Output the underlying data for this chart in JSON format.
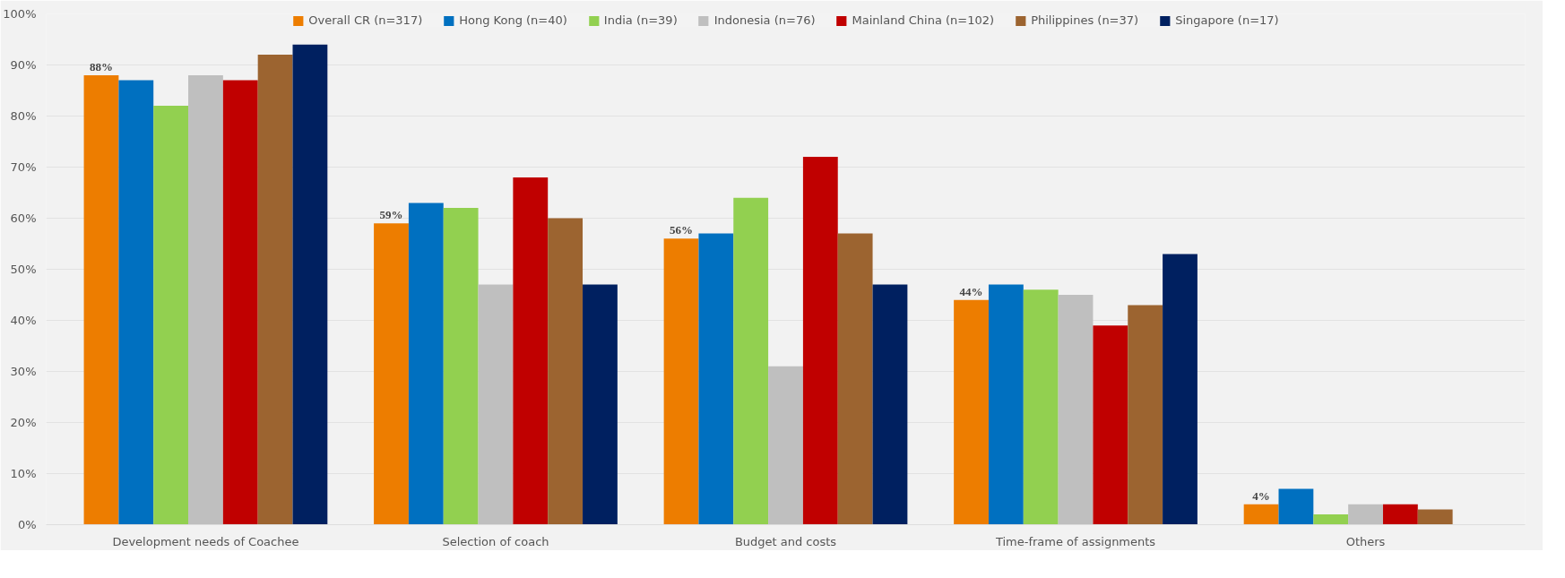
{
  "chart_data": {
    "type": "bar",
    "categories": [
      "Development needs of Coachee",
      "Selection of coach",
      "Budget and costs",
      "Time-frame of assignments",
      "Others"
    ],
    "series": [
      {
        "name": "Overall CR (n=317)",
        "color": "#ed7d00",
        "values": [
          88,
          59,
          56,
          44,
          4
        ],
        "value_labels": [
          "88%",
          "59%",
          "56%",
          "44%",
          "4%"
        ]
      },
      {
        "name": "Hong Kong (n=40)",
        "color": "#0070c0",
        "values": [
          87,
          63,
          57,
          47,
          7
        ]
      },
      {
        "name": "India (n=39)",
        "color": "#92d050",
        "values": [
          82,
          62,
          64,
          46,
          2
        ]
      },
      {
        "name": "Indonesia (n=76)",
        "color": "#bfbfbf",
        "values": [
          88,
          47,
          31,
          45,
          4
        ]
      },
      {
        "name": "Mainland China (n=102)",
        "color": "#c00000",
        "values": [
          87,
          68,
          72,
          39,
          4
        ]
      },
      {
        "name": "Philippines (n=37)",
        "color": "#9c6430",
        "values": [
          92,
          60,
          57,
          43,
          3
        ]
      },
      {
        "name": "Singapore (n=17)",
        "color": "#002060",
        "values": [
          94,
          47,
          47,
          53,
          0
        ]
      }
    ],
    "ylim": [
      0,
      100
    ],
    "yticks": [
      {
        "value": 0,
        "label": "0%"
      },
      {
        "value": 10,
        "label": "10%"
      },
      {
        "value": 20,
        "label": "20%"
      },
      {
        "value": 30,
        "label": "30%"
      },
      {
        "value": 40,
        "label": "40%"
      },
      {
        "value": 50,
        "label": "50%"
      },
      {
        "value": 60,
        "label": "60%"
      },
      {
        "value": 70,
        "label": "70%"
      },
      {
        "value": 80,
        "label": "80%"
      },
      {
        "value": 90,
        "label": "90%"
      },
      {
        "value": 100,
        "label": "100%"
      }
    ],
    "grid": "y",
    "legend": "top"
  }
}
